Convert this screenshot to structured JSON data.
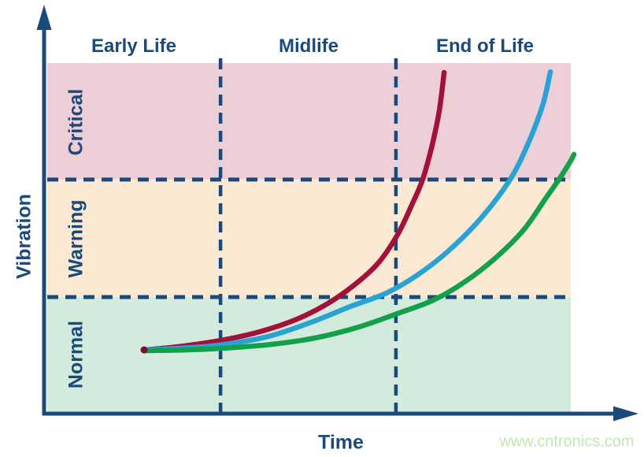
{
  "watermark": "www.cntronics.com",
  "colors": {
    "navy": "#1a4a7c",
    "watermark": "#c8e5b0",
    "start_dot": "#73102f"
  },
  "chart_data": {
    "type": "line",
    "title": "",
    "xlabel": "Time",
    "ylabel": "Vibration",
    "x_range": [
      0,
      100
    ],
    "y_range": [
      0,
      100
    ],
    "grid": false,
    "legend": "none",
    "phases": [
      {
        "label": "Early Life",
        "x_range": [
          0,
          33.1
        ]
      },
      {
        "label": "Midlife",
        "x_range": [
          33.1,
          66.6
        ]
      },
      {
        "label": "End of Life",
        "x_range": [
          66.6,
          100
        ]
      }
    ],
    "zones": [
      {
        "label": "Critical",
        "y_range": [
          66.7,
          100
        ],
        "color": "#edcfd8"
      },
      {
        "label": "Warning",
        "y_range": [
          33.1,
          66.7
        ],
        "color": "#fbe9d3"
      },
      {
        "label": "Normal",
        "y_range": [
          0,
          33.1
        ],
        "color": "#d2ebdd"
      }
    ],
    "phase_dividers_x": [
      33.1,
      66.6
    ],
    "zone_boundaries_y": [
      33.1,
      66.7
    ],
    "series": [
      {
        "name": "red-fast-degradation",
        "color": "#a31039",
        "points": [
          [
            18.5,
            18.0
          ],
          [
            24.8,
            18.9
          ],
          [
            33.1,
            20.7
          ],
          [
            40.6,
            23.2
          ],
          [
            47.4,
            26.6
          ],
          [
            53.4,
            31.1
          ],
          [
            58.6,
            36.5
          ],
          [
            63.2,
            42.8
          ],
          [
            66.9,
            50.9
          ],
          [
            69.5,
            59.0
          ],
          [
            71.7,
            66.7
          ],
          [
            73.5,
            76.4
          ],
          [
            74.9,
            86.5
          ],
          [
            75.8,
            97.3
          ]
        ]
      },
      {
        "name": "blue-medium-degradation",
        "color": "#29a2d4",
        "points": [
          [
            18.5,
            18.0
          ],
          [
            25.6,
            18.5
          ],
          [
            33.1,
            19.4
          ],
          [
            42.1,
            21.8
          ],
          [
            50.4,
            25.9
          ],
          [
            57.9,
            30.4
          ],
          [
            64.7,
            34.2
          ],
          [
            70.7,
            39.4
          ],
          [
            76.7,
            46.4
          ],
          [
            82.7,
            55.4
          ],
          [
            88.4,
            66.7
          ],
          [
            92.0,
            77.5
          ],
          [
            94.7,
            88.3
          ],
          [
            96.1,
            97.5
          ]
        ]
      },
      {
        "name": "green-slow-degradation",
        "color": "#12a04a",
        "points": [
          [
            18.5,
            17.8
          ],
          [
            26.3,
            18.0
          ],
          [
            33.8,
            18.5
          ],
          [
            42.9,
            19.6
          ],
          [
            51.1,
            21.4
          ],
          [
            59.4,
            24.5
          ],
          [
            66.9,
            28.4
          ],
          [
            73.7,
            32.2
          ],
          [
            79.7,
            37.4
          ],
          [
            85.7,
            44.4
          ],
          [
            91.0,
            52.3
          ],
          [
            95.2,
            61.3
          ],
          [
            98.0,
            67.3
          ],
          [
            100.0,
            72.1
          ],
          [
            100.6,
            73.9
          ]
        ]
      }
    ]
  }
}
